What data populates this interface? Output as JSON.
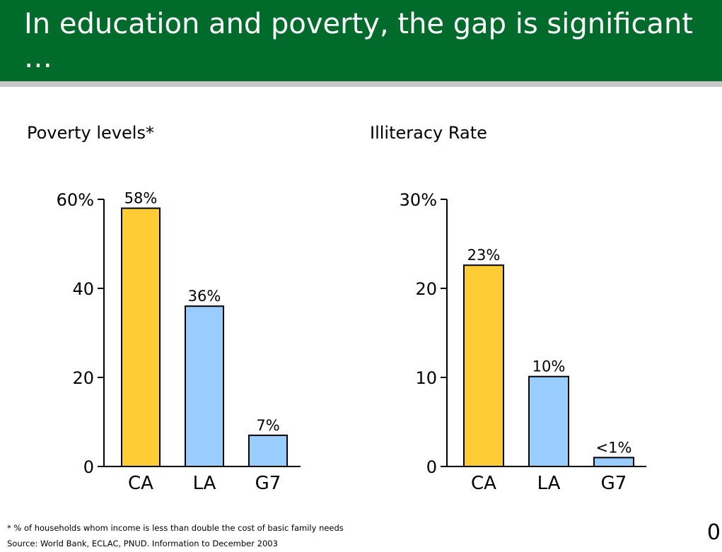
{
  "slide": {
    "title": "In education and poverty, the gap is significant …",
    "footnote": "* % of households whom income is less than double the cost of basic family needs",
    "source": "Source: World Bank, ECLAC, PNUD. Information to December 2003",
    "page_number": "0"
  },
  "colors": {
    "header": "#006b2b",
    "header_rule": "#c8c8c8",
    "bar_highlight": "#ffcc33",
    "bar_other": "#99ccff"
  },
  "chart_data": [
    {
      "type": "bar",
      "title": "Poverty levels*",
      "categories": [
        "CA",
        "LA",
        "G7"
      ],
      "values": [
        58,
        36,
        7
      ],
      "data_labels": [
        "58%",
        "36%",
        "7%"
      ],
      "yticks": [
        "0",
        "20",
        "40",
        "60%"
      ],
      "ytick_values": [
        0,
        20,
        40,
        60
      ],
      "ylim": [
        0,
        60
      ],
      "bar_colors": [
        "#ffcc33",
        "#99ccff",
        "#99ccff"
      ],
      "grid": false
    },
    {
      "type": "bar",
      "title": "Illiteracy Rate",
      "categories": [
        "CA",
        "LA",
        "G7"
      ],
      "values": [
        22.6,
        10.1,
        1
      ],
      "data_labels": [
        "23%",
        "10%",
        "<1%"
      ],
      "yticks": [
        "0",
        "10",
        "20",
        "30%"
      ],
      "ytick_values": [
        0,
        10,
        20,
        30
      ],
      "ylim": [
        0,
        30
      ],
      "bar_colors": [
        "#ffcc33",
        "#99ccff",
        "#99ccff"
      ],
      "grid": false
    }
  ]
}
